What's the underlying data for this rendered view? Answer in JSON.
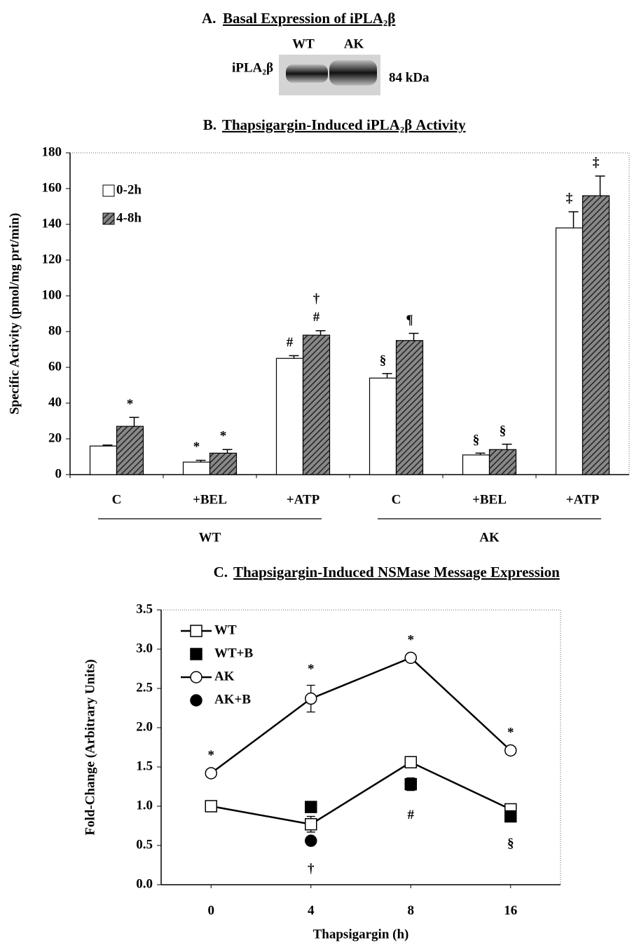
{
  "blot": {
    "panel": "A.",
    "title": "Basal Expression of iPLA₂β",
    "lanes": [
      "WT",
      "AK"
    ],
    "protein": "iPLA₂β",
    "size": "84 kDa"
  },
  "chart_data": [
    {
      "type": "bar",
      "panel": "B.",
      "title": "Thapsigargin-Induced iPLA₂β Activity",
      "y_label": "Specific Activity (pmol/mg prt/min)",
      "categories": [
        "C",
        "+BEL",
        "+ATP",
        "C",
        "+BEL",
        "+ATP"
      ],
      "groups": [
        "WT",
        "AK"
      ],
      "ylim": [
        0,
        180
      ],
      "yticks": [
        0,
        20,
        40,
        60,
        80,
        100,
        120,
        140,
        160,
        180
      ],
      "legend": "top-left",
      "series": [
        {
          "name": "0-2h",
          "color": "#ffffff",
          "hatch": false,
          "values": [
            16,
            7,
            65,
            54,
            11,
            138
          ],
          "errors": [
            0.5,
            1,
            1.5,
            2.5,
            1,
            9
          ],
          "markers": [
            [],
            [
              "*"
            ],
            [
              "#"
            ],
            [
              "§"
            ],
            [
              "§"
            ],
            [
              "‡"
            ]
          ]
        },
        {
          "name": "4-8h",
          "color": "#555555",
          "hatch": true,
          "values": [
            27,
            12,
            78,
            75,
            14,
            156
          ],
          "errors": [
            5,
            2,
            2.5,
            4,
            3,
            11
          ],
          "markers": [
            [
              "*"
            ],
            [
              "*"
            ],
            [
              "†",
              "#"
            ],
            [
              "¶"
            ],
            [
              "§"
            ],
            [
              "‡"
            ]
          ]
        }
      ]
    },
    {
      "type": "line",
      "panel": "C.",
      "title": "Thapsigargin-Induced NSMase Message Expression",
      "x_label": "Thapsigargin (h)",
      "y_label": "Fold-Change (Arbitrary Units)",
      "categories": [
        "0",
        "4",
        "8",
        "16"
      ],
      "ylim": [
        0,
        3.5
      ],
      "yticks": [
        {
          "value": 0,
          "label": "0.0"
        },
        0.5,
        {
          "value": 1,
          "label": "1.0"
        },
        1.5,
        {
          "value": 2,
          "label": "2.0"
        },
        2.5,
        {
          "value": 3,
          "label": "3.0"
        },
        3.5
      ],
      "legend": "top-left",
      "notes_below": [
        null,
        "†",
        "#",
        "§"
      ],
      "series": [
        {
          "name": "WT",
          "color": "#000000",
          "marker": "square",
          "filled": false,
          "line": true,
          "values": [
            1.0,
            0.77,
            1.56,
            0.96
          ],
          "errors": [
            0.03,
            0.1,
            0.04,
            0.04
          ],
          "markers": [
            null,
            null,
            null,
            null
          ]
        },
        {
          "name": "WT+B",
          "color": "#000000",
          "marker": "square",
          "filled": true,
          "line": false,
          "values": [
            null,
            0.99,
            1.28,
            0.87
          ],
          "errors": [
            null,
            0.03,
            0.08,
            0.03
          ],
          "markers": [
            null,
            null,
            null,
            null
          ]
        },
        {
          "name": "AK",
          "color": "#000000",
          "marker": "circle",
          "filled": false,
          "line": true,
          "values": [
            1.42,
            2.37,
            2.89,
            1.71
          ],
          "errors": [
            0.02,
            0.17,
            0.02,
            0.02
          ],
          "markers": [
            "*",
            "*",
            "*",
            "*"
          ]
        },
        {
          "name": "AK+B",
          "color": "#000000",
          "marker": "circle",
          "filled": true,
          "line": false,
          "values": [
            null,
            0.56,
            null,
            null
          ],
          "errors": [
            null,
            0.05,
            null,
            null
          ],
          "markers": [
            null,
            null,
            null,
            null
          ]
        }
      ]
    }
  ]
}
